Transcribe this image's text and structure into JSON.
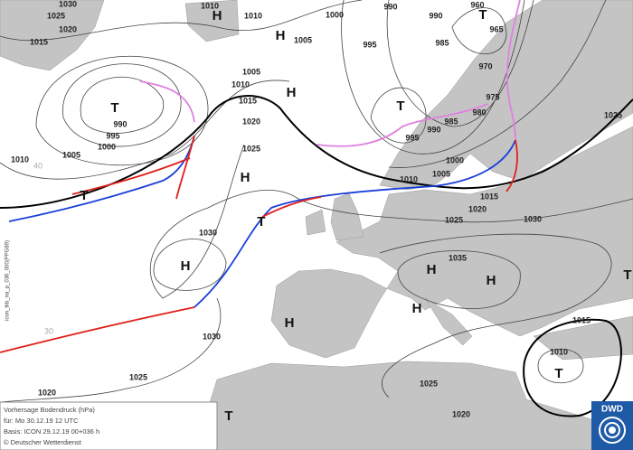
{
  "legend": {
    "title": "Vorhersage Bodendruck (hPa)",
    "valid": "für:  Mo 30.12.19  12 UTC",
    "basis": "Basis: ICON  29.12.19 00+036 h",
    "copyright": "© Deutscher Wetterdienst"
  },
  "logo": "DWD",
  "side_label": "icon_tkb_na_p_036_000(PPG89)",
  "latitude_labels": [
    "40",
    "30"
  ],
  "isobar_labels": [
    "1030",
    "1025",
    "1020",
    "1015",
    "1010",
    "1010",
    "1000",
    "990",
    "990",
    "960",
    "965",
    "970",
    "995",
    "985",
    "1005",
    "1005",
    "1010",
    "1015",
    "1020",
    "1025",
    "990",
    "995",
    "1000",
    "1005",
    "1010",
    "975",
    "980",
    "985",
    "990",
    "995",
    "1000",
    "1005",
    "1010",
    "1015",
    "1020",
    "1025",
    "1030",
    "1025",
    "1035",
    "1030",
    "1030",
    "1025",
    "1020",
    "1025",
    "1020",
    "1015",
    "1010"
  ],
  "pressure_centers": [
    "T",
    "H",
    "H",
    "T",
    "T",
    "H",
    "H",
    "T",
    "T",
    "H",
    "H",
    "H",
    "H",
    "H",
    "T",
    "T",
    "T"
  ]
}
